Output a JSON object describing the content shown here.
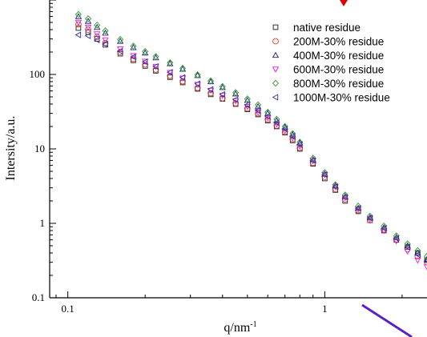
{
  "chart_data": {
    "type": "scatter",
    "title": "",
    "xlabel": "q/nm",
    "xlabel_superscript": "-1",
    "ylabel": "Intersity/a.u.",
    "x_scale": "log",
    "y_scale": "log",
    "xlim": [
      0.085,
      2.5
    ],
    "ylim": [
      0.1,
      1000
    ],
    "x_ticks": [
      {
        "value": 0.1,
        "label": "0.1"
      },
      {
        "value": 1,
        "label": "1"
      }
    ],
    "y_ticks": [
      {
        "value": 0.1,
        "label": "0.1"
      },
      {
        "value": 1,
        "label": "1"
      },
      {
        "value": 10,
        "label": "10"
      },
      {
        "value": 100,
        "label": "100"
      }
    ],
    "grid": false,
    "legend_position": "top-right",
    "series": [
      {
        "name": "native residue",
        "marker": "square",
        "color": "#1a1a1a",
        "points": [
          [
            0.11,
            420
          ],
          [
            0.12,
            370
          ],
          [
            0.13,
            300
          ],
          [
            0.14,
            250
          ],
          [
            0.16,
            190
          ],
          [
            0.18,
            155
          ],
          [
            0.2,
            130
          ],
          [
            0.22,
            112
          ],
          [
            0.25,
            92
          ],
          [
            0.28,
            78
          ],
          [
            0.32,
            64
          ],
          [
            0.36,
            54
          ],
          [
            0.4,
            47
          ],
          [
            0.45,
            40
          ],
          [
            0.5,
            34
          ],
          [
            0.55,
            29
          ],
          [
            0.6,
            24
          ],
          [
            0.65,
            20
          ],
          [
            0.7,
            16.5
          ],
          [
            0.75,
            13
          ],
          [
            0.8,
            10
          ],
          [
            0.9,
            6.3
          ],
          [
            1.0,
            4.0
          ],
          [
            1.1,
            2.8
          ],
          [
            1.2,
            2.0
          ],
          [
            1.35,
            1.45
          ],
          [
            1.5,
            1.1
          ],
          [
            1.7,
            0.8
          ],
          [
            1.9,
            0.6
          ],
          [
            2.1,
            0.48
          ],
          [
            2.3,
            0.4
          ],
          [
            2.5,
            0.32
          ]
        ]
      },
      {
        "name": "200M-30% residue",
        "marker": "circle",
        "color": "#e8392a",
        "points": [
          [
            0.11,
            470
          ],
          [
            0.12,
            400
          ],
          [
            0.13,
            320
          ],
          [
            0.14,
            265
          ],
          [
            0.16,
            200
          ],
          [
            0.18,
            162
          ],
          [
            0.2,
            136
          ],
          [
            0.22,
            116
          ],
          [
            0.25,
            96
          ],
          [
            0.28,
            81
          ],
          [
            0.32,
            66
          ],
          [
            0.36,
            56
          ],
          [
            0.4,
            48
          ],
          [
            0.45,
            41
          ],
          [
            0.5,
            35
          ],
          [
            0.55,
            30
          ],
          [
            0.6,
            25
          ],
          [
            0.65,
            20.5
          ],
          [
            0.7,
            17
          ],
          [
            0.75,
            13.5
          ],
          [
            0.8,
            10.3
          ],
          [
            0.9,
            6.5
          ],
          [
            1.0,
            4.2
          ],
          [
            1.1,
            2.9
          ],
          [
            1.2,
            2.1
          ],
          [
            1.35,
            1.5
          ],
          [
            1.5,
            1.1
          ],
          [
            1.7,
            0.82
          ],
          [
            1.9,
            0.6
          ],
          [
            2.1,
            0.45
          ],
          [
            2.3,
            0.36
          ],
          [
            2.5,
            0.3
          ]
        ]
      },
      {
        "name": "400M-30%  residue",
        "marker": "triangle-up",
        "color": "#202070",
        "points": [
          [
            0.11,
            600
          ],
          [
            0.12,
            520
          ],
          [
            0.13,
            430
          ],
          [
            0.14,
            360
          ],
          [
            0.16,
            280
          ],
          [
            0.18,
            230
          ],
          [
            0.2,
            195
          ],
          [
            0.22,
            168
          ],
          [
            0.25,
            140
          ],
          [
            0.28,
            118
          ],
          [
            0.32,
            97
          ],
          [
            0.36,
            80
          ],
          [
            0.4,
            67
          ],
          [
            0.45,
            55
          ],
          [
            0.5,
            45
          ],
          [
            0.55,
            37
          ],
          [
            0.6,
            30
          ],
          [
            0.65,
            24
          ],
          [
            0.7,
            19.5
          ],
          [
            0.75,
            15.5
          ],
          [
            0.8,
            12
          ],
          [
            0.9,
            7.2
          ],
          [
            1.0,
            4.6
          ],
          [
            1.1,
            3.2
          ],
          [
            1.2,
            2.3
          ],
          [
            1.35,
            1.6
          ],
          [
            1.5,
            1.2
          ],
          [
            1.7,
            0.88
          ],
          [
            1.9,
            0.65
          ],
          [
            2.1,
            0.5
          ],
          [
            2.3,
            0.4
          ],
          [
            2.5,
            0.33
          ]
        ]
      },
      {
        "name": "600M-30% residue",
        "marker": "triangle-down",
        "color": "#e020e0",
        "points": [
          [
            0.11,
            500
          ],
          [
            0.12,
            430
          ],
          [
            0.13,
            350
          ],
          [
            0.14,
            290
          ],
          [
            0.16,
            220
          ],
          [
            0.18,
            178
          ],
          [
            0.2,
            150
          ],
          [
            0.22,
            128
          ],
          [
            0.25,
            106
          ],
          [
            0.28,
            89
          ],
          [
            0.32,
            73
          ],
          [
            0.36,
            61
          ],
          [
            0.4,
            52
          ],
          [
            0.45,
            44
          ],
          [
            0.5,
            37
          ],
          [
            0.55,
            31
          ],
          [
            0.6,
            26
          ],
          [
            0.65,
            21.5
          ],
          [
            0.7,
            17.5
          ],
          [
            0.75,
            14
          ],
          [
            0.8,
            10.8
          ],
          [
            0.9,
            6.9
          ],
          [
            1.0,
            4.5
          ],
          [
            1.1,
            3.1
          ],
          [
            1.2,
            2.2
          ],
          [
            1.35,
            1.55
          ],
          [
            1.5,
            1.15
          ],
          [
            1.7,
            0.8
          ],
          [
            1.9,
            0.58
          ],
          [
            2.1,
            0.42
          ],
          [
            2.3,
            0.32
          ],
          [
            2.5,
            0.26
          ]
        ]
      },
      {
        "name": "800M-30% residue",
        "marker": "diamond",
        "color": "#2a9a2a",
        "points": [
          [
            0.11,
            640
          ],
          [
            0.12,
            560
          ],
          [
            0.13,
            460
          ],
          [
            0.14,
            385
          ],
          [
            0.16,
            295
          ],
          [
            0.18,
            240
          ],
          [
            0.2,
            203
          ],
          [
            0.22,
            174
          ],
          [
            0.25,
            144
          ],
          [
            0.28,
            121
          ],
          [
            0.32,
            99
          ],
          [
            0.36,
            82
          ],
          [
            0.4,
            69
          ],
          [
            0.45,
            57
          ],
          [
            0.5,
            47
          ],
          [
            0.55,
            39
          ],
          [
            0.6,
            31
          ],
          [
            0.65,
            25
          ],
          [
            0.7,
            20
          ],
          [
            0.75,
            16
          ],
          [
            0.8,
            12.3
          ],
          [
            0.9,
            7.5
          ],
          [
            1.0,
            4.8
          ],
          [
            1.1,
            3.3
          ],
          [
            1.2,
            2.4
          ],
          [
            1.35,
            1.7
          ],
          [
            1.5,
            1.25
          ],
          [
            1.7,
            0.92
          ],
          [
            1.9,
            0.68
          ],
          [
            2.1,
            0.53
          ],
          [
            2.3,
            0.43
          ],
          [
            2.5,
            0.36
          ]
        ]
      },
      {
        "name": "1000M-30% residue",
        "marker": "triangle-left",
        "color": "#3030a0",
        "points": [
          [
            0.11,
            340
          ],
          [
            0.12,
            330
          ],
          [
            0.13,
            290
          ],
          [
            0.14,
            255
          ],
          [
            0.16,
            205
          ],
          [
            0.18,
            172
          ],
          [
            0.2,
            148
          ],
          [
            0.22,
            128
          ],
          [
            0.25,
            107
          ],
          [
            0.28,
            91
          ],
          [
            0.32,
            75
          ],
          [
            0.36,
            63
          ],
          [
            0.4,
            54
          ],
          [
            0.45,
            46
          ],
          [
            0.5,
            39
          ],
          [
            0.55,
            33
          ],
          [
            0.6,
            27.5
          ],
          [
            0.65,
            22.5
          ],
          [
            0.7,
            18.5
          ],
          [
            0.75,
            14.8
          ],
          [
            0.8,
            11.5
          ],
          [
            0.9,
            7.0
          ],
          [
            1.0,
            4.5
          ],
          [
            1.1,
            3.1
          ],
          [
            1.2,
            2.25
          ],
          [
            1.35,
            1.6
          ],
          [
            1.5,
            1.18
          ],
          [
            1.7,
            0.86
          ],
          [
            1.9,
            0.63
          ],
          [
            2.1,
            0.48
          ],
          [
            2.3,
            0.38
          ],
          [
            2.5,
            0.31
          ]
        ]
      }
    ],
    "annotations": [
      {
        "type": "arrow",
        "color": "#e00000",
        "direction": "down"
      },
      {
        "type": "line",
        "color": "#5a20c8"
      }
    ]
  }
}
